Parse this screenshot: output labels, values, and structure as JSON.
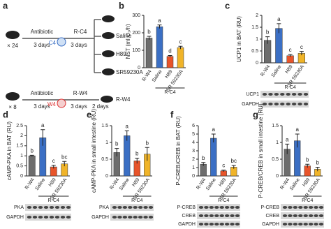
{
  "diagram": {
    "panel": "a",
    "row1": {
      "count": "× 24",
      "antibiotic": "Antibiotic",
      "days1": "3 days",
      "donor": "C4",
      "group": "R-C4",
      "days2": "3 days",
      "arms": [
        "Saline",
        "H89",
        "SR59230A"
      ]
    },
    "row2": {
      "count": "× 8",
      "antibiotic": "Antibiotic",
      "days1": "3 days",
      "donor": "W4",
      "group": "R-W4",
      "days2": "3 days",
      "days3": "2 days",
      "end": "R-W4"
    }
  },
  "chart_data": [
    {
      "type": "bar",
      "panel": "b",
      "ylabel": "NST (ml O₂/h)",
      "categories": [
        "R-W4",
        "Saline",
        "H89",
        "SR 59230A"
      ],
      "group_label": "R-C4",
      "values": [
        170,
        235,
        65,
        115
      ],
      "errors": [
        10,
        10,
        5,
        8
      ],
      "letters": [
        "b",
        "a",
        "d",
        "c"
      ],
      "colors": [
        "#6d6d6d",
        "#3b6fc4",
        "#e8542a",
        "#f0b429"
      ],
      "ylim": [
        0,
        300
      ],
      "yticks": [
        0,
        100,
        200,
        300
      ],
      "blots": []
    },
    {
      "type": "bar",
      "panel": "c",
      "ylabel": "UCP1 in BAT (RU)",
      "categories": [
        "R-W4",
        "Saline",
        "H89",
        "SR 59230A"
      ],
      "group_label": "R-C4",
      "values": [
        0.95,
        1.45,
        0.3,
        0.4
      ],
      "errors": [
        0.15,
        0.2,
        0.05,
        0.08
      ],
      "letters": [
        "b",
        "a",
        "c",
        "c"
      ],
      "colors": [
        "#6d6d6d",
        "#3b6fc4",
        "#e8542a",
        "#f0b429"
      ],
      "ylim": [
        0,
        2
      ],
      "yticks": [
        0,
        0.5,
        1,
        1.5,
        2
      ],
      "blots": [
        "UCP1",
        "GAPDH"
      ]
    },
    {
      "type": "bar",
      "panel": "d",
      "ylabel": "cAMP-PKA in BAT (RU)",
      "categories": [
        "R-W4",
        "Saline",
        "H89",
        "SR 59230A"
      ],
      "group_label": "R-C4",
      "values": [
        1.0,
        1.9,
        0.45,
        0.6
      ],
      "errors": [
        0.03,
        0.4,
        0.08,
        0.12
      ],
      "letters": [
        "b",
        "a",
        "c",
        "bc"
      ],
      "colors": [
        "#6d6d6d",
        "#3b6fc4",
        "#e8542a",
        "#f0b429"
      ],
      "ylim": [
        0,
        2.5
      ],
      "yticks": [
        0,
        0.5,
        1,
        1.5,
        2,
        2.5
      ],
      "blots": [
        "PKA",
        "GAPDH"
      ]
    },
    {
      "type": "bar",
      "panel": "e",
      "ylabel": "cAMP-PKA in small intestine (RU)",
      "categories": [
        "R-W4",
        "Saline",
        "H89",
        "SR 59230A"
      ],
      "group_label": "R-C4",
      "values": [
        0.7,
        1.2,
        0.45,
        0.65
      ],
      "errors": [
        0.12,
        0.15,
        0.08,
        0.2
      ],
      "letters": [
        "b",
        "a",
        "b",
        "b"
      ],
      "colors": [
        "#6d6d6d",
        "#3b6fc4",
        "#e8542a",
        "#f0b429"
      ],
      "ylim": [
        0,
        1.5
      ],
      "yticks": [
        0,
        0.5,
        1,
        1.5
      ],
      "blots": [
        "PKA",
        "GAPDH"
      ]
    },
    {
      "type": "bar",
      "panel": "f",
      "ylabel": "P-CREB/CREB in BAT (RU)",
      "categories": [
        "R-W4",
        "Saline",
        "H89",
        "SR 59230A"
      ],
      "group_label": "R-C4",
      "values": [
        1.4,
        4.5,
        0.6,
        1.05
      ],
      "errors": [
        0.2,
        0.5,
        0.1,
        0.2
      ],
      "letters": [
        "b",
        "a",
        "c",
        "bc"
      ],
      "colors": [
        "#6d6d6d",
        "#3b6fc4",
        "#e8542a",
        "#f0b429"
      ],
      "ylim": [
        0,
        6
      ],
      "yticks": [
        0,
        1,
        2,
        3,
        4,
        5,
        6
      ],
      "blots": [
        "P-CREB",
        "CREB",
        "GAPDH"
      ]
    },
    {
      "type": "bar",
      "panel": "g",
      "ylabel": "P-CREB/CREB in small intestine (RU)",
      "categories": [
        "R-W4",
        "Saline",
        "H89",
        "SR 59230A"
      ],
      "group_label": "R-C4",
      "values": [
        0.8,
        1.05,
        0.3,
        0.2
      ],
      "errors": [
        0.15,
        0.2,
        0.05,
        0.06
      ],
      "letters": [
        "a",
        "a",
        "b",
        "b"
      ],
      "colors": [
        "#6d6d6d",
        "#3b6fc4",
        "#e8542a",
        "#f0b429"
      ],
      "ylim": [
        0,
        1.5
      ],
      "yticks": [
        0,
        0.5,
        1,
        1.5
      ],
      "blots": [
        "P-CREB",
        "CREB",
        "GAPDH"
      ]
    }
  ]
}
